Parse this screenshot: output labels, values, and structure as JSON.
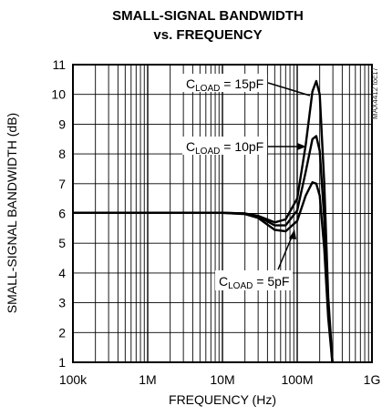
{
  "chart_data": {
    "type": "line",
    "title_line1": "SMALL-SIGNAL BANDWIDTH",
    "title_line2": "vs. FREQUENCY",
    "xlabel": "FREQUENCY (Hz)",
    "ylabel": "SMALL-SIGNAL BANDWIDTH (dB)",
    "xscale": "log",
    "xlim": [
      100000,
      1000000000
    ],
    "ylim": [
      1,
      11
    ],
    "grid": true,
    "x_ticks": [
      {
        "value": 100000,
        "label": "100k"
      },
      {
        "value": 1000000,
        "label": "1M"
      },
      {
        "value": 10000000,
        "label": "10M"
      },
      {
        "value": 100000000,
        "label": "100M"
      },
      {
        "value": 1000000000,
        "label": "1G"
      }
    ],
    "y_ticks": [
      1,
      2,
      3,
      4,
      5,
      6,
      7,
      8,
      9,
      10,
      11
    ],
    "watermark": "MAX4412 toc17",
    "series": [
      {
        "label_main": "C",
        "label_sub": "LOAD",
        "label_rest": " = 15pF",
        "x": [
          100000,
          1000000,
          10000000,
          20000000,
          30000000,
          50000000,
          70000000,
          100000000,
          130000000,
          160000000,
          180000000,
          200000000,
          230000000,
          260000000,
          300000000
        ],
        "y": [
          6.02,
          6.02,
          6.02,
          6.0,
          5.92,
          5.7,
          5.8,
          6.5,
          8.3,
          10.1,
          10.45,
          10.0,
          7.0,
          3.2,
          0.8
        ]
      },
      {
        "label_main": "C",
        "label_sub": "LOAD",
        "label_rest": " = 10pF",
        "x": [
          100000,
          1000000,
          10000000,
          20000000,
          30000000,
          50000000,
          70000000,
          100000000,
          130000000,
          160000000,
          180000000,
          200000000,
          230000000,
          260000000,
          300000000
        ],
        "y": [
          6.02,
          6.02,
          6.02,
          6.0,
          5.9,
          5.6,
          5.6,
          6.1,
          7.4,
          8.5,
          8.6,
          8.1,
          5.8,
          2.8,
          0.8
        ]
      },
      {
        "label_main": "C",
        "label_sub": "LOAD",
        "label_rest": " = 5pF",
        "x": [
          100000,
          1000000,
          10000000,
          20000000,
          30000000,
          50000000,
          70000000,
          100000000,
          130000000,
          160000000,
          180000000,
          200000000,
          230000000,
          260000000,
          300000000
        ],
        "y": [
          6.02,
          6.02,
          6.02,
          5.98,
          5.85,
          5.45,
          5.4,
          5.75,
          6.6,
          7.05,
          7.0,
          6.6,
          4.8,
          2.5,
          0.8
        ]
      }
    ]
  }
}
